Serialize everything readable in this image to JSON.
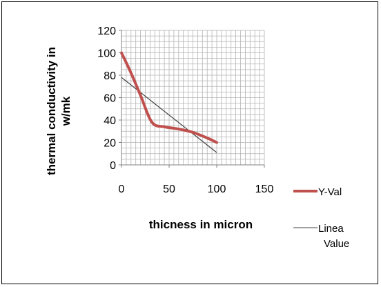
{
  "chart_data": {
    "type": "line",
    "xlabel": "thicness in micron",
    "ylabel": "thermal conductivity in w/mk",
    "xlim": [
      0,
      150
    ],
    "ylim": [
      0,
      120
    ],
    "x_ticks": [
      "0",
      "50",
      "100",
      "150"
    ],
    "y_ticks": [
      "0",
      "20",
      "40",
      "60",
      "80",
      "100",
      "120"
    ],
    "grid": true,
    "legend_position": "right",
    "series": [
      {
        "name": "Y-Values",
        "legend_label": "Y-Val",
        "color": "#c0504d",
        "style": "smooth",
        "x": [
          0,
          10,
          20,
          32,
          45,
          60,
          75,
          90,
          100
        ],
        "y": [
          100,
          82,
          62,
          38,
          34,
          32,
          29,
          24,
          20
        ]
      },
      {
        "name": "Linear (Y-Values)",
        "legend_label": [
          "Linea",
          "Value"
        ],
        "color": "#404040",
        "style": "straight",
        "x": [
          0,
          100
        ],
        "y": [
          78,
          11
        ]
      }
    ]
  }
}
